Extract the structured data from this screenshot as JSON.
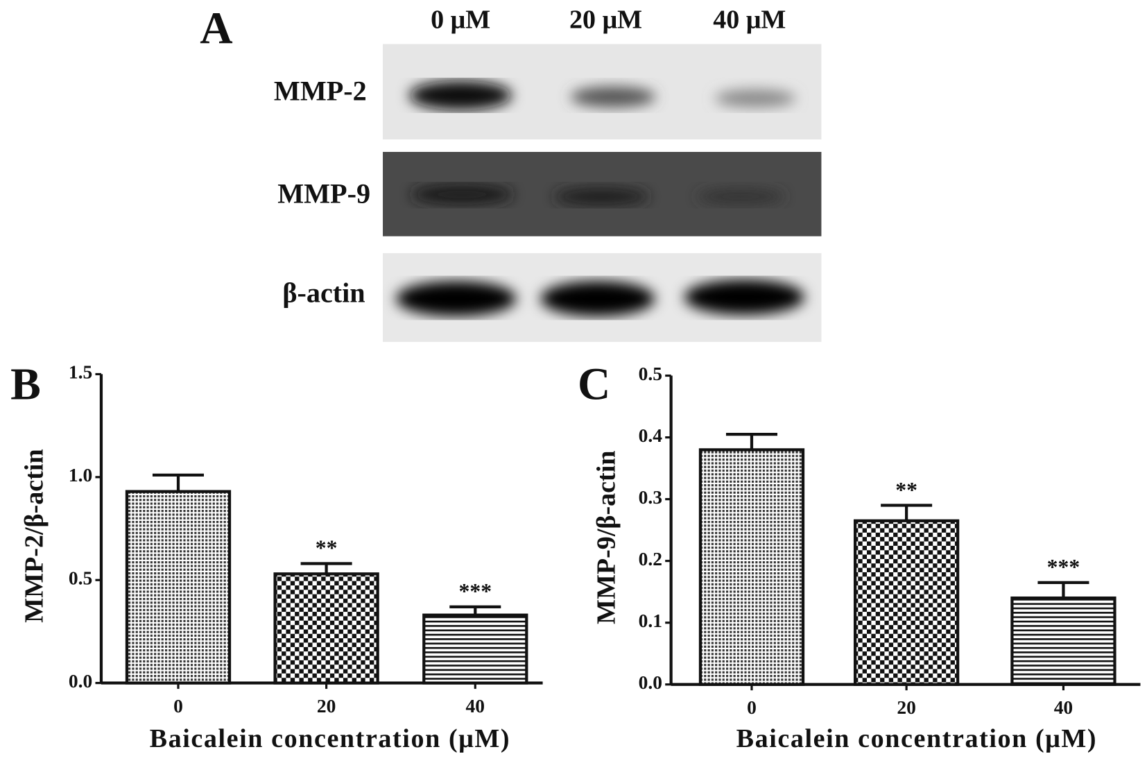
{
  "panel_a": {
    "label": "A",
    "lanes": [
      "0 μM",
      "20 μM",
      "40 μM"
    ],
    "bands": [
      "MMP-2",
      "MMP-9",
      "β-actin"
    ]
  },
  "chart_data": [
    {
      "type": "bar",
      "panel_label": "B",
      "ylabel": "MMP-2/β-actin",
      "xlabel": "Baicalein  concentration (μM)",
      "categories": [
        "0",
        "20",
        "40"
      ],
      "values": [
        0.93,
        0.53,
        0.33
      ],
      "errors": [
        0.08,
        0.05,
        0.04
      ],
      "annotations": [
        null,
        "**",
        "***"
      ],
      "patterns": [
        "dots",
        "checker",
        "hlines"
      ],
      "ylim": [
        0,
        1.5
      ],
      "yticks": [
        {
          "value": 0,
          "label": "0.0"
        },
        0.5,
        {
          "value": 1,
          "label": "1.0"
        },
        1.5
      ]
    },
    {
      "type": "bar",
      "panel_label": "C",
      "ylabel": "MMP-9/β-actin",
      "xlabel": "Baicalein  concentration (μM)",
      "categories": [
        "0",
        "20",
        "40"
      ],
      "values": [
        0.38,
        0.265,
        0.14
      ],
      "errors": [
        0.025,
        0.025,
        0.025
      ],
      "annotations": [
        null,
        "**",
        "***"
      ],
      "patterns": [
        "dots",
        "checker",
        "hlines"
      ],
      "ylim": [
        0,
        0.5
      ],
      "yticks": [
        {
          "value": 0,
          "label": "0.0"
        },
        0.1,
        0.2,
        0.3,
        0.4,
        0.5
      ]
    }
  ]
}
